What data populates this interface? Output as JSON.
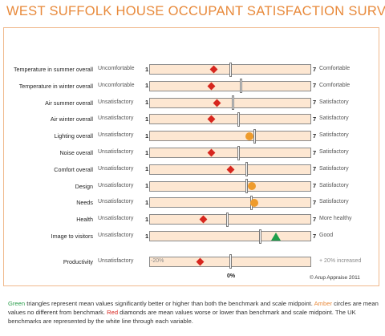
{
  "title": "WEST SUFFOLK HOUSE OCCUPANT SATISFACTION SURVEY",
  "colors": {
    "title": "#e8893a",
    "track": "#fde7d2",
    "green": "#1e9e4a",
    "amber": "#ee9b2c",
    "red": "#d7261e"
  },
  "chart_data": {
    "type": "scatter",
    "scale": [
      1,
      7
    ],
    "scale_min_label": "1",
    "scale_max_label": "7",
    "rows": [
      {
        "label": "Temperature in summer overall",
        "low": "Uncomfortable",
        "high": "Comfortable",
        "mean": 3.4,
        "benchmark": 4.0,
        "marker": "diamond"
      },
      {
        "label": "Temperature in winter overall",
        "low": "Uncomfortable",
        "high": "Comfortable",
        "mean": 3.3,
        "benchmark": 4.4,
        "marker": "diamond"
      },
      {
        "label": "Air summer overall",
        "low": "Unsatisfactory",
        "high": "Satisfactory",
        "mean": 3.5,
        "benchmark": 4.1,
        "marker": "diamond"
      },
      {
        "label": "Air winter overall",
        "low": "Unsatisfactory",
        "high": "Satisfactory",
        "mean": 3.3,
        "benchmark": 4.3,
        "marker": "diamond"
      },
      {
        "label": "Lighting overall",
        "low": "Unsatisfactory",
        "high": "Satisfactory",
        "mean": 4.7,
        "benchmark": 4.9,
        "marker": "circle"
      },
      {
        "label": "Noise overall",
        "low": "Unsatisfactory",
        "high": "Satisfactory",
        "mean": 3.3,
        "benchmark": 4.3,
        "marker": "diamond"
      },
      {
        "label": "Comfort overall",
        "low": "Unsatisfactory",
        "high": "Satisfactory",
        "mean": 4.0,
        "benchmark": 4.6,
        "marker": "diamond"
      },
      {
        "label": "Design",
        "low": "Unsatisfactory",
        "high": "Satisfactory",
        "mean": 4.8,
        "benchmark": 4.6,
        "marker": "circle"
      },
      {
        "label": "Needs",
        "low": "Unsatisfactory",
        "high": "Satisfactory",
        "mean": 4.9,
        "benchmark": 4.8,
        "marker": "circle"
      },
      {
        "label": "Health",
        "low": "Unsatisfactory",
        "high": "More healthy",
        "mean": 3.0,
        "benchmark": 3.9,
        "marker": "diamond"
      },
      {
        "label": "Image to visitors",
        "low": "Unsatisfactory",
        "high": "Good",
        "mean": 5.7,
        "benchmark": 5.1,
        "marker": "triangle"
      }
    ],
    "productivity": {
      "label": "Productivity",
      "low": "Unsatisfactory",
      "min_label": "-20%",
      "max_label": "+ 20% increased",
      "zero_label": "0%",
      "range": [
        -20,
        20
      ],
      "mean": -7.5,
      "benchmark": 0,
      "marker": "diamond"
    },
    "credit": "© Arup Appraise 2011"
  },
  "caption": {
    "green_word": "Green",
    "green_text": " triangles represent mean values significantly better or higher than both the benchmark and scale midpoint. ",
    "amber_word": "Amber",
    "amber_text": " circles are mean values no different from benchmark. ",
    "red_word": "Red",
    "red_text": " diamonds are mean values worse or lower than benchmark and scale midpoint. The UK benchmarks are represented by the white line through each variable."
  }
}
